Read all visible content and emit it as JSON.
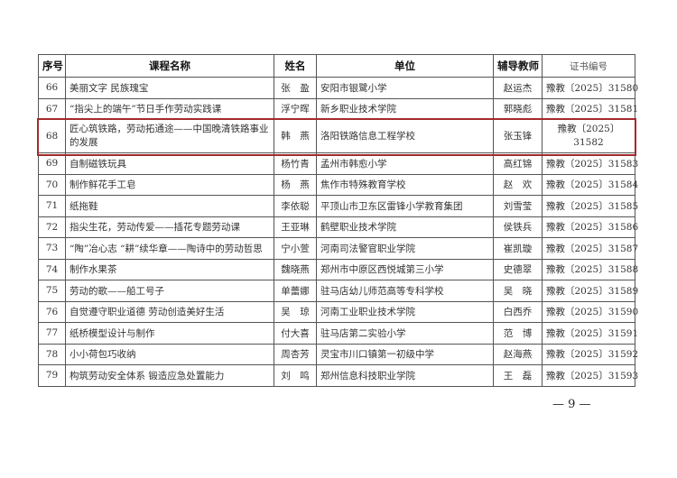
{
  "headers": {
    "no": "序号",
    "course": "课程名称",
    "name": "姓名",
    "unit": "单位",
    "tutor": "辅导教师",
    "cert": "证书编号"
  },
  "rows": [
    {
      "no": "66",
      "course": "美丽文字 民族瑰宝",
      "name": "张　盈",
      "unit": "安阳市银鹭小学",
      "tutor": "赵运杰",
      "cert": "豫教〔2025〕31580"
    },
    {
      "no": "67",
      "course": "“指尖上的端午”节日手作劳动实践课",
      "name": "浮宁晖",
      "unit": "新乡职业技术学院",
      "tutor": "郭晓彪",
      "cert": "豫教〔2025〕31581"
    },
    {
      "no": "68",
      "course": "匠心筑铁路，劳动拓通途——中国晚清铁路事业的发展",
      "name": "韩　燕",
      "unit": "洛阳铁路信息工程学校",
      "tutor": "张玉锋",
      "cert": "豫教〔2025〕31582"
    },
    {
      "no": "69",
      "course": "自制磁铁玩具",
      "name": "杨竹青",
      "unit": "孟州市韩愈小学",
      "tutor": "高红锦",
      "cert": "豫教〔2025〕31583"
    },
    {
      "no": "70",
      "course": "制作鲜花手工皂",
      "name": "杨　燕",
      "unit": "焦作市特殊教育学校",
      "tutor": "赵　欢",
      "cert": "豫教〔2025〕31584"
    },
    {
      "no": "71",
      "course": "纸拖鞋",
      "name": "李依聪",
      "unit": "平顶山市卫东区雷锋小学教育集团",
      "tutor": "刘雪莹",
      "cert": "豫教〔2025〕31585"
    },
    {
      "no": "72",
      "course": "指尖生花，劳动传爱——插花专题劳动课",
      "name": "王亚琳",
      "unit": "鹤壁职业技术学院",
      "tutor": "侯铁兵",
      "cert": "豫教〔2025〕31586"
    },
    {
      "no": "73",
      "course": "“陶”冶心志 “耕”续华章——陶诗中的劳动哲思",
      "name": "宁小萱",
      "unit": "河南司法警官职业学院",
      "tutor": "崔凯璇",
      "cert": "豫教〔2025〕31587"
    },
    {
      "no": "74",
      "course": "制作水果茶",
      "name": "魏晓燕",
      "unit": "郑州市中原区西悦城第三小学",
      "tutor": "史德翠",
      "cert": "豫教〔2025〕31588"
    },
    {
      "no": "75",
      "course": "劳动的歌——船工号子",
      "name": "单蕾娜",
      "unit": "驻马店幼儿师范高等专科学校",
      "tutor": "吴　晓",
      "cert": "豫教〔2025〕31589"
    },
    {
      "no": "76",
      "course": "自觉遵守职业道德 劳动创造美好生活",
      "name": "吴　琼",
      "unit": "河南工业职业技术学院",
      "tutor": "白西乔",
      "cert": "豫教〔2025〕31590"
    },
    {
      "no": "77",
      "course": "纸桥模型设计与制作",
      "name": "付大喜",
      "unit": "驻马店第二实验小学",
      "tutor": "范　博",
      "cert": "豫教〔2025〕31591"
    },
    {
      "no": "78",
      "course": "小小荷包巧收纳",
      "name": "周杏芳",
      "unit": "灵宝市川口镇第一初级中学",
      "tutor": "赵海燕",
      "cert": "豫教〔2025〕31592"
    },
    {
      "no": "79",
      "course": "构筑劳动安全体系 锻造应急处置能力",
      "name": "刘　鸣",
      "unit": "郑州信息科技职业学院",
      "tutor": "王　磊",
      "cert": "豫教〔2025〕31593"
    }
  ],
  "highlight_row": "68",
  "highlight_color": "#a32a2e",
  "page_number": "— 9 —"
}
